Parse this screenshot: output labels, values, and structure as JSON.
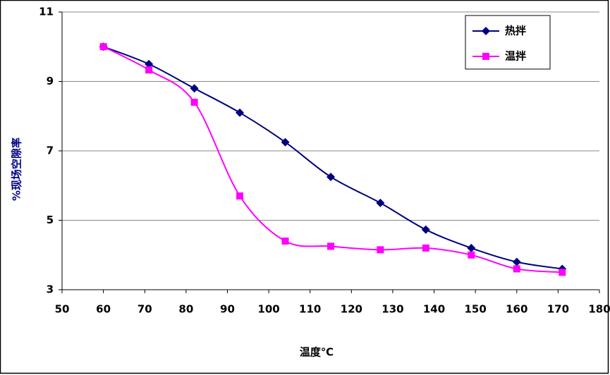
{
  "chart_data": {
    "type": "line",
    "x_label": "温度℃",
    "y_label": "%现场空隙率",
    "xlim": [
      50,
      180
    ],
    "xticks": [
      50,
      60,
      70,
      80,
      90,
      100,
      110,
      120,
      130,
      140,
      150,
      160,
      170,
      180
    ],
    "ylim": [
      3,
      11
    ],
    "yticks": [
      3,
      5,
      7,
      9,
      11
    ],
    "grid": true,
    "legend": "top-right",
    "smooth": true,
    "x": [
      60,
      71,
      82,
      93,
      104,
      115,
      127,
      138,
      149,
      160,
      171
    ],
    "series": [
      {
        "name": "热拌",
        "color": "#000080",
        "marker": "diamond",
        "values": [
          10.0,
          9.5,
          8.8,
          8.1,
          7.25,
          6.25,
          5.5,
          4.73,
          4.2,
          3.8,
          3.6
        ]
      },
      {
        "name": "温拌",
        "color": "#ff00ff",
        "marker": "square",
        "values": [
          10.0,
          9.33,
          8.4,
          5.7,
          4.4,
          4.25,
          4.15,
          4.2,
          4.0,
          3.6,
          3.5
        ]
      }
    ]
  }
}
